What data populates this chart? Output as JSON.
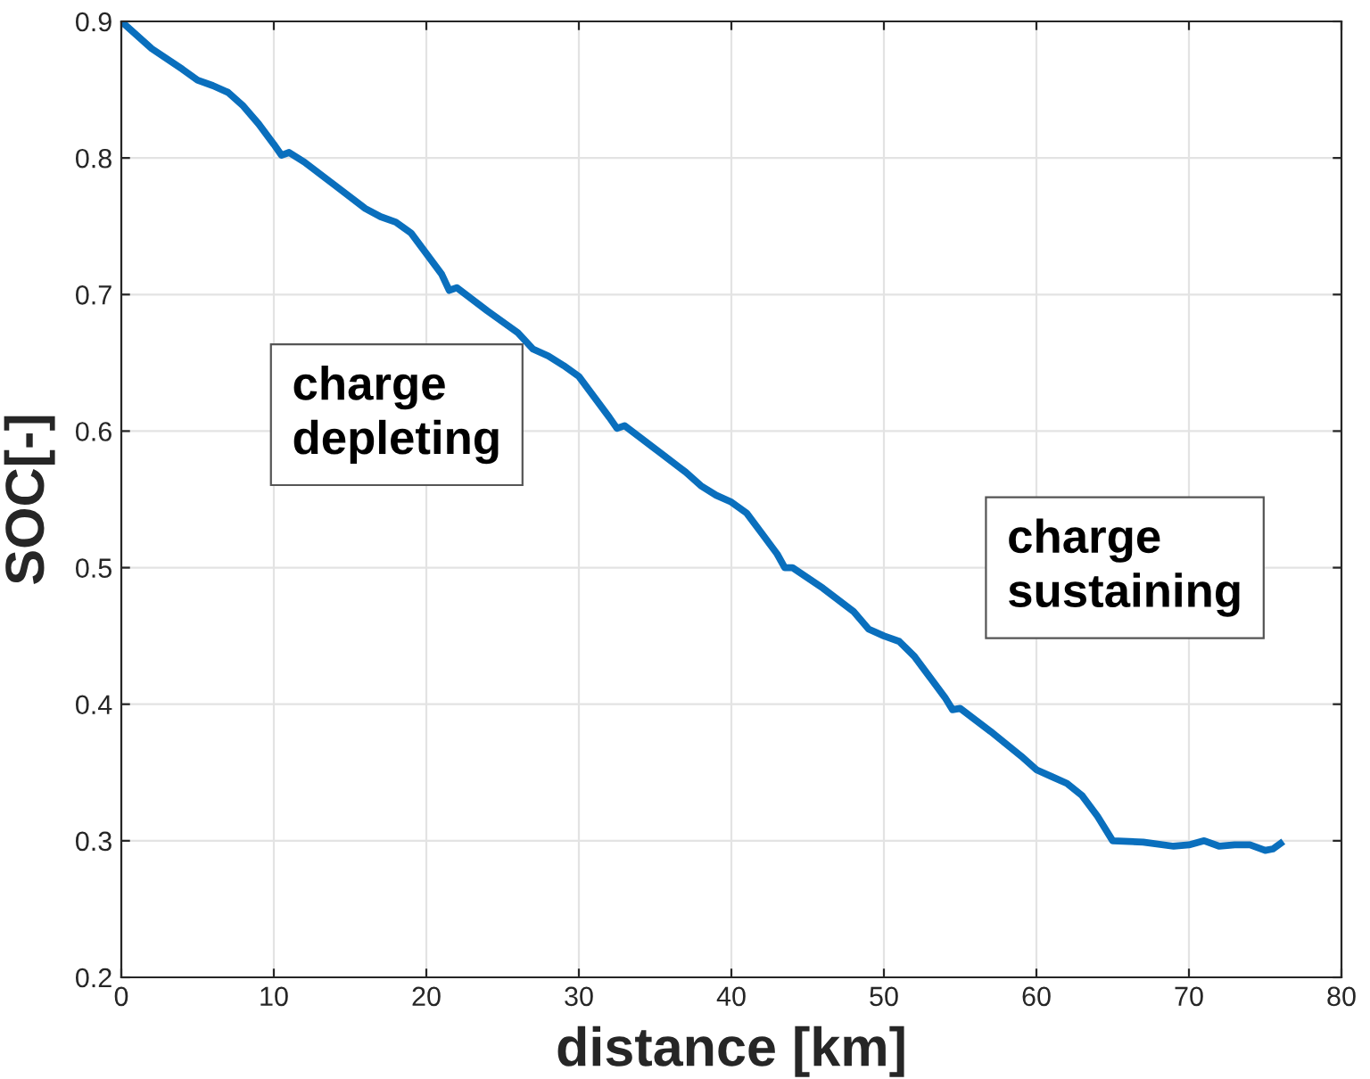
{
  "chart_data": {
    "type": "line",
    "xlabel": "distance [km]",
    "ylabel": "SOC[-]",
    "xlim": [
      0,
      80
    ],
    "xticks": [
      0,
      10,
      20,
      30,
      40,
      50,
      60,
      70,
      80
    ],
    "ylim": [
      0.2,
      0.9
    ],
    "yticks": [
      0.2,
      0.3,
      0.4,
      0.5,
      0.6,
      0.7,
      0.8,
      0.9
    ],
    "grid": true,
    "line_style": "solid",
    "marker": "none",
    "annotations": [
      "charge\ndepleting",
      "charge\nsustaining"
    ],
    "series": [
      {
        "color": "#0a6fbd",
        "x": [
          0,
          2,
          4,
          5,
          6,
          7,
          8,
          9,
          10,
          10.5,
          11,
          12,
          14,
          16,
          17,
          18,
          19,
          20,
          21,
          21.5,
          22,
          24,
          26,
          27,
          28,
          29,
          30,
          31,
          32,
          32.5,
          33,
          35,
          37,
          38,
          39,
          40,
          41,
          42,
          43,
          43.5,
          44,
          46,
          48,
          49,
          50,
          51,
          52,
          53,
          54,
          54.5,
          55,
          57,
          59,
          60,
          61,
          62,
          63,
          64,
          65,
          67,
          69,
          70,
          71,
          72,
          73,
          74,
          75,
          75.5,
          76
        ],
        "values": [
          0.9,
          0.88,
          0.865,
          0.857,
          0.853,
          0.848,
          0.838,
          0.825,
          0.81,
          0.802,
          0.804,
          0.797,
          0.78,
          0.763,
          0.757,
          0.753,
          0.745,
          0.73,
          0.715,
          0.703,
          0.705,
          0.688,
          0.672,
          0.66,
          0.655,
          0.648,
          0.64,
          0.625,
          0.61,
          0.602,
          0.604,
          0.587,
          0.57,
          0.56,
          0.553,
          0.548,
          0.54,
          0.525,
          0.51,
          0.5,
          0.5,
          0.485,
          0.468,
          0.455,
          0.45,
          0.446,
          0.435,
          0.42,
          0.405,
          0.396,
          0.397,
          0.38,
          0.362,
          0.352,
          0.347,
          0.342,
          0.333,
          0.318,
          0.3,
          0.299,
          0.296,
          0.297,
          0.3,
          0.296,
          0.297,
          0.297,
          0.293,
          0.294,
          0.298
        ]
      }
    ]
  }
}
